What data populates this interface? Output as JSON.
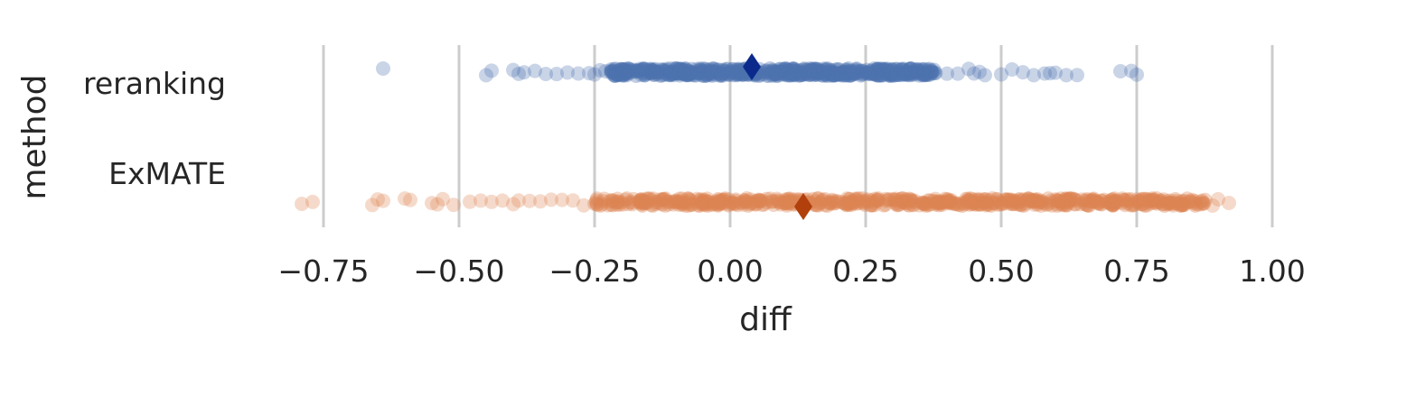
{
  "chart_data": {
    "type": "scatter",
    "title": "",
    "xlabel": "diff",
    "ylabel": "method",
    "xlim": [
      -0.85,
      1.0
    ],
    "x_ticks": [
      -0.75,
      -0.5,
      -0.25,
      0.0,
      0.25,
      0.5,
      0.75,
      1.0
    ],
    "x_tick_labels": [
      "−0.75",
      "−0.50",
      "−0.25",
      "0.00",
      "0.25",
      "0.50",
      "0.75",
      "1.00"
    ],
    "grid": "vertical",
    "categories": [
      "reranking",
      "ExMATE"
    ],
    "series": [
      {
        "name": "reranking",
        "color": "#4c72b0",
        "mean_marker_color": "#0b2a8c",
        "mean": 0.04,
        "dense_range": [
          -0.22,
          0.38
        ],
        "outlier_points": [
          -0.64,
          -0.45,
          -0.44,
          -0.4,
          -0.39,
          -0.38,
          -0.36,
          -0.34,
          -0.32,
          -0.3,
          -0.28,
          -0.26,
          -0.25,
          -0.24,
          -0.23,
          0.4,
          0.42,
          0.44,
          0.45,
          0.46,
          0.47,
          0.5,
          0.52,
          0.54,
          0.56,
          0.58,
          0.59,
          0.6,
          0.62,
          0.64,
          0.72,
          0.74,
          0.75
        ]
      },
      {
        "name": "ExMATE",
        "color": "#dd8452",
        "mean_marker_color": "#b1400d",
        "mean": 0.135,
        "dense_range": [
          -0.25,
          0.88
        ],
        "outlier_points": [
          -0.79,
          -0.77,
          -0.66,
          -0.65,
          -0.64,
          -0.6,
          -0.59,
          -0.55,
          -0.54,
          -0.53,
          -0.51,
          -0.48,
          -0.46,
          -0.44,
          -0.42,
          -0.4,
          -0.39,
          -0.37,
          -0.35,
          -0.33,
          -0.31,
          -0.29,
          -0.27,
          0.89,
          0.9,
          0.92
        ]
      }
    ]
  }
}
